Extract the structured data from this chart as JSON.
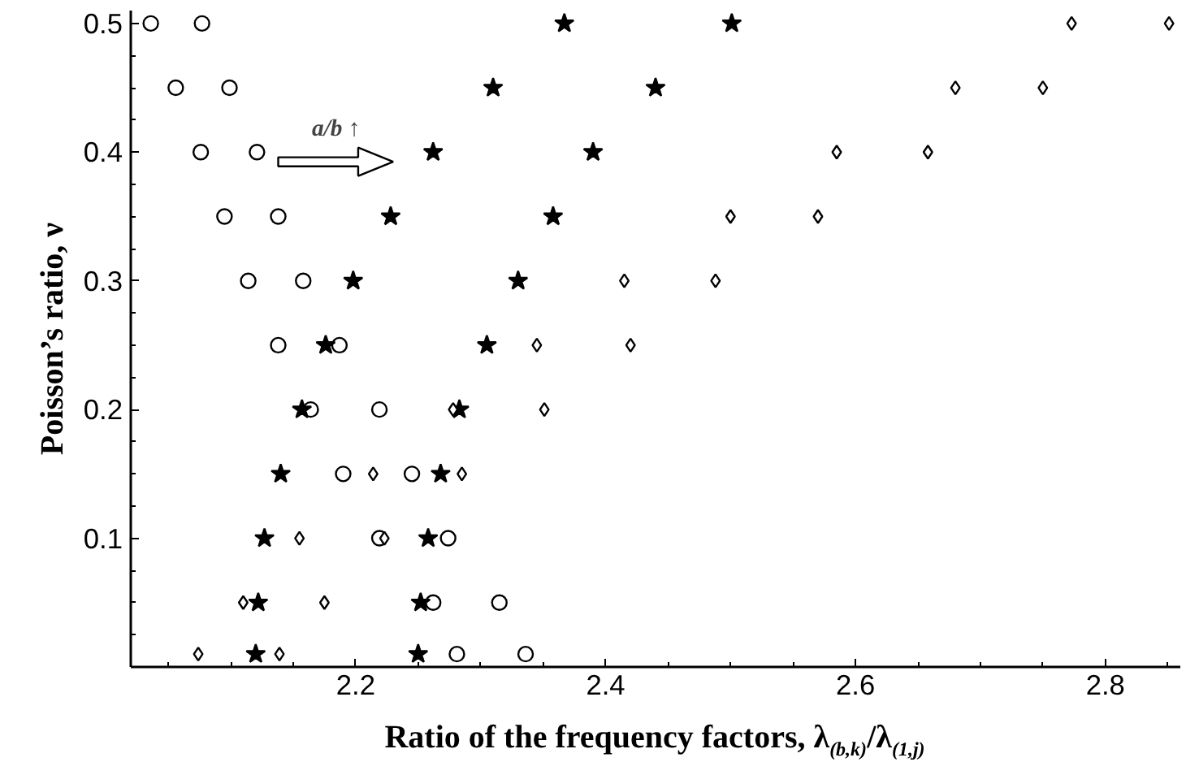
{
  "chart_data": {
    "type": "scatter",
    "xlabel": "Ratio of the frequency factors, λ$_{(b,k)}$/λ$_{(1,j)}$",
    "ylabel": "Poisson’s ratio, ν",
    "annotations": [
      "a/b ↑"
    ],
    "xlim": [
      2.02,
      2.86
    ],
    "xticks": [
      2.2,
      2.4,
      2.6,
      2.8
    ],
    "ylim": [
      0,
      0.51
    ],
    "yticks": [
      0.1,
      0.2,
      0.3,
      0.4,
      0.5
    ],
    "series": [
      {
        "color": "#000000",
        "marker": "circle",
        "x": [
          2.281,
          2.262,
          2.219,
          2.19,
          2.164,
          2.138,
          2.114,
          2.095,
          2.076,
          2.056,
          2.036
        ],
        "values": [
          0.01,
          0.05,
          0.1,
          0.15,
          0.2,
          0.25,
          0.3,
          0.35,
          0.4,
          0.45,
          0.5
        ]
      },
      {
        "color": "#000000",
        "marker": "circle",
        "x": [
          2.336,
          2.315,
          2.274,
          2.245,
          2.219,
          2.187,
          2.158,
          2.138,
          2.121,
          2.099,
          2.077
        ],
        "values": [
          0.01,
          0.05,
          0.1,
          0.15,
          0.2,
          0.25,
          0.3,
          0.35,
          0.4,
          0.45,
          0.5
        ]
      },
      {
        "color": "#000000",
        "marker": "star",
        "x": [
          2.12,
          2.122,
          2.127,
          2.14,
          2.157,
          2.176,
          2.198,
          2.228,
          2.262,
          2.31,
          2.367
        ],
        "values": [
          0.01,
          0.05,
          0.1,
          0.15,
          0.2,
          0.25,
          0.3,
          0.35,
          0.4,
          0.45,
          0.5
        ]
      },
      {
        "color": "#000000",
        "marker": "star",
        "x": [
          2.25,
          2.252,
          2.258,
          2.268,
          2.283,
          2.305,
          2.33,
          2.358,
          2.39,
          2.44,
          2.501
        ],
        "values": [
          0.01,
          0.05,
          0.1,
          0.15,
          0.2,
          0.25,
          0.3,
          0.35,
          0.4,
          0.45,
          0.5
        ]
      },
      {
        "color": "#000000",
        "marker": "diamond",
        "x": [
          2.074,
          2.11,
          2.155,
          2.214,
          2.278,
          2.345,
          2.415,
          2.5,
          2.585,
          2.68,
          2.773
        ],
        "values": [
          0.01,
          0.05,
          0.1,
          0.15,
          0.2,
          0.25,
          0.3,
          0.35,
          0.4,
          0.45,
          0.5
        ]
      },
      {
        "color": "#000000",
        "marker": "diamond",
        "x": [
          2.139,
          2.175,
          2.223,
          2.285,
          2.351,
          2.42,
          2.488,
          2.57,
          2.658,
          2.75,
          2.851
        ],
        "values": [
          0.01,
          0.05,
          0.1,
          0.15,
          0.2,
          0.25,
          0.3,
          0.35,
          0.4,
          0.45,
          0.5
        ]
      }
    ]
  }
}
